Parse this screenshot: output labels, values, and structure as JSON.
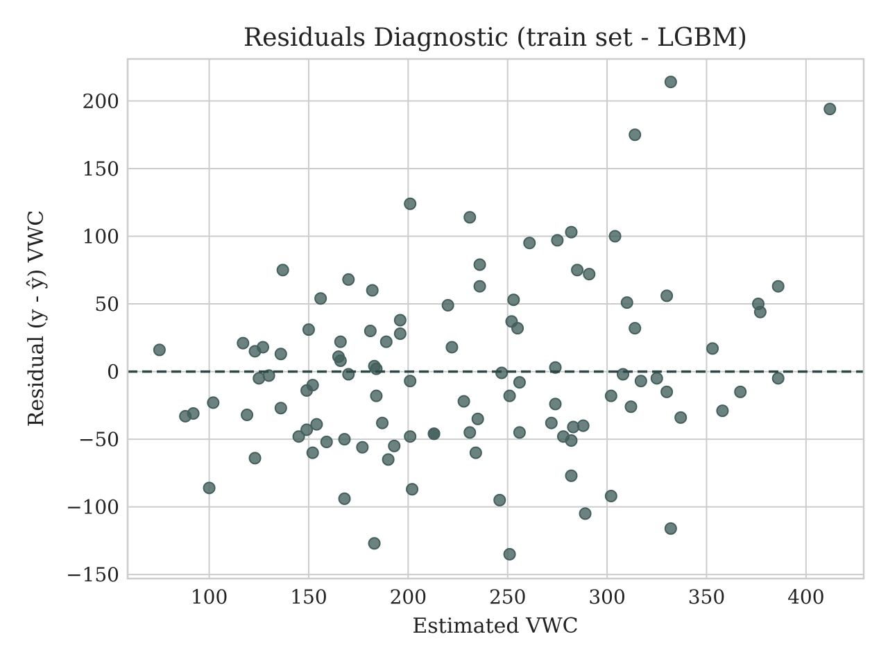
{
  "chart_data": {
    "type": "scatter",
    "title": "Residuals Diagnostic (train set - LGBM)",
    "xlabel": "Estimated VWC",
    "ylabel": "Residual (y - ŷ) VWC",
    "xlim": [
      59,
      429
    ],
    "ylim": [
      -153,
      231
    ],
    "x_ticks": [
      100,
      150,
      200,
      250,
      300,
      350,
      400
    ],
    "x_tick_labels": [
      "100",
      "150",
      "200",
      "250",
      "300",
      "350",
      "400"
    ],
    "y_ticks": [
      -150,
      -100,
      -50,
      0,
      50,
      100,
      150,
      200
    ],
    "y_tick_labels": [
      "−150",
      "−100",
      "−50",
      "0",
      "50",
      "100",
      "150",
      "200"
    ],
    "grid": true,
    "reference_line": {
      "y": 0,
      "style": "dashed"
    },
    "colors": {
      "point": "#425f5c",
      "reference_line": "#2d4744",
      "grid": "#cccccc"
    },
    "points": [
      {
        "x": 75,
        "y": 16
      },
      {
        "x": 88,
        "y": -33
      },
      {
        "x": 92,
        "y": -31
      },
      {
        "x": 100,
        "y": -86
      },
      {
        "x": 102,
        "y": -23
      },
      {
        "x": 117,
        "y": 21
      },
      {
        "x": 119,
        "y": -32
      },
      {
        "x": 123,
        "y": 15
      },
      {
        "x": 123,
        "y": -64
      },
      {
        "x": 125,
        "y": -5
      },
      {
        "x": 127,
        "y": 18
      },
      {
        "x": 130,
        "y": -3
      },
      {
        "x": 136,
        "y": 13
      },
      {
        "x": 136,
        "y": -27
      },
      {
        "x": 137,
        "y": 75
      },
      {
        "x": 145,
        "y": -48
      },
      {
        "x": 149,
        "y": -14
      },
      {
        "x": 149,
        "y": -43
      },
      {
        "x": 150,
        "y": 31
      },
      {
        "x": 152,
        "y": -10
      },
      {
        "x": 152,
        "y": -60
      },
      {
        "x": 154,
        "y": -39
      },
      {
        "x": 156,
        "y": 54
      },
      {
        "x": 159,
        "y": -52
      },
      {
        "x": 165,
        "y": 11
      },
      {
        "x": 166,
        "y": 8
      },
      {
        "x": 166,
        "y": 22
      },
      {
        "x": 168,
        "y": -94
      },
      {
        "x": 168,
        "y": -50
      },
      {
        "x": 170,
        "y": 68
      },
      {
        "x": 170,
        "y": -2
      },
      {
        "x": 177,
        "y": -56
      },
      {
        "x": 181,
        "y": 30
      },
      {
        "x": 182,
        "y": 60
      },
      {
        "x": 183,
        "y": -127
      },
      {
        "x": 183,
        "y": 4
      },
      {
        "x": 184,
        "y": 2
      },
      {
        "x": 184,
        "y": -18
      },
      {
        "x": 187,
        "y": -38
      },
      {
        "x": 189,
        "y": 22
      },
      {
        "x": 190,
        "y": -65
      },
      {
        "x": 193,
        "y": -55
      },
      {
        "x": 196,
        "y": 38
      },
      {
        "x": 196,
        "y": 28
      },
      {
        "x": 201,
        "y": 124
      },
      {
        "x": 201,
        "y": -7
      },
      {
        "x": 201,
        "y": -48
      },
      {
        "x": 202,
        "y": -87
      },
      {
        "x": 213,
        "y": -46
      },
      {
        "x": 213,
        "y": -46
      },
      {
        "x": 220,
        "y": 49
      },
      {
        "x": 222,
        "y": 18
      },
      {
        "x": 228,
        "y": -22
      },
      {
        "x": 231,
        "y": 114
      },
      {
        "x": 231,
        "y": -45
      },
      {
        "x": 234,
        "y": -60
      },
      {
        "x": 235,
        "y": -35
      },
      {
        "x": 236,
        "y": 79
      },
      {
        "x": 236,
        "y": 63
      },
      {
        "x": 246,
        "y": -95
      },
      {
        "x": 247,
        "y": -1
      },
      {
        "x": 251,
        "y": -135
      },
      {
        "x": 251,
        "y": -18
      },
      {
        "x": 252,
        "y": 37
      },
      {
        "x": 253,
        "y": 53
      },
      {
        "x": 255,
        "y": 32
      },
      {
        "x": 256,
        "y": -8
      },
      {
        "x": 256,
        "y": -45
      },
      {
        "x": 261,
        "y": 95
      },
      {
        "x": 272,
        "y": -38
      },
      {
        "x": 274,
        "y": 3
      },
      {
        "x": 274,
        "y": -24
      },
      {
        "x": 275,
        "y": 97
      },
      {
        "x": 278,
        "y": -48
      },
      {
        "x": 282,
        "y": 103
      },
      {
        "x": 282,
        "y": -51
      },
      {
        "x": 282,
        "y": -77
      },
      {
        "x": 283,
        "y": -41
      },
      {
        "x": 285,
        "y": 75
      },
      {
        "x": 288,
        "y": -40
      },
      {
        "x": 289,
        "y": -105
      },
      {
        "x": 291,
        "y": 72
      },
      {
        "x": 302,
        "y": -92
      },
      {
        "x": 302,
        "y": -18
      },
      {
        "x": 304,
        "y": 100
      },
      {
        "x": 308,
        "y": -2
      },
      {
        "x": 310,
        "y": 51
      },
      {
        "x": 312,
        "y": -26
      },
      {
        "x": 314,
        "y": 175
      },
      {
        "x": 314,
        "y": 32
      },
      {
        "x": 317,
        "y": -7
      },
      {
        "x": 325,
        "y": -5
      },
      {
        "x": 330,
        "y": 56
      },
      {
        "x": 330,
        "y": -15
      },
      {
        "x": 332,
        "y": 214
      },
      {
        "x": 332,
        "y": -116
      },
      {
        "x": 337,
        "y": -34
      },
      {
        "x": 353,
        "y": 17
      },
      {
        "x": 358,
        "y": -29
      },
      {
        "x": 367,
        "y": -15
      },
      {
        "x": 376,
        "y": 50
      },
      {
        "x": 377,
        "y": 44
      },
      {
        "x": 386,
        "y": 63
      },
      {
        "x": 386,
        "y": -5
      },
      {
        "x": 412,
        "y": 194
      }
    ]
  }
}
